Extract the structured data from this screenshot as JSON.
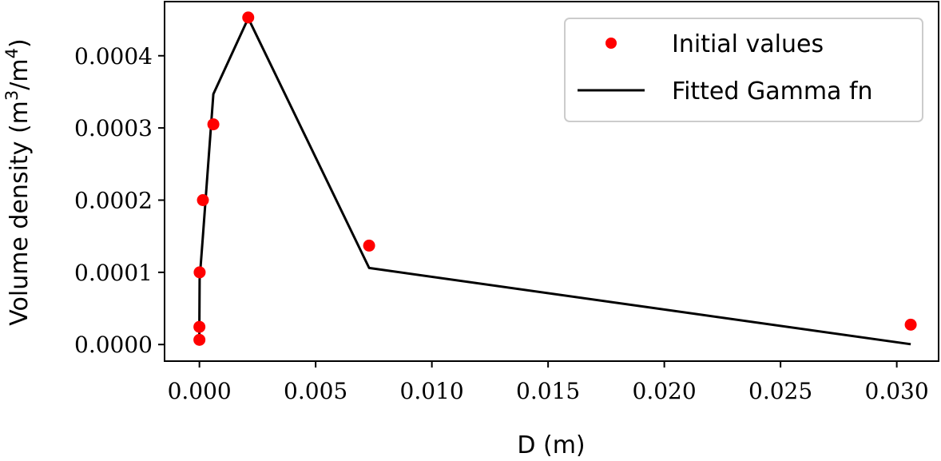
{
  "chart_data": {
    "type": "line",
    "xlabel": "D (m)",
    "ylabel": {
      "prefix": "Volume density (m",
      "sup1": "3",
      "mid": "/m",
      "sup2": "4",
      "suffix": ")"
    },
    "xlim": [
      -0.0015,
      0.0318
    ],
    "ylim": [
      -2.3e-05,
      0.000475
    ],
    "x_ticks": [
      0.0,
      0.005,
      0.01,
      0.015,
      0.02,
      0.025,
      0.03
    ],
    "x_tick_labels": [
      "0.000",
      "0.005",
      "0.010",
      "0.015",
      "0.020",
      "0.025",
      "0.030"
    ],
    "y_ticks": [
      0.0,
      0.0001,
      0.0002,
      0.0003,
      0.0004
    ],
    "y_tick_labels": [
      "0.0000",
      "0.0001",
      "0.0002",
      "0.0003",
      "0.0004"
    ],
    "legend_position": "top-right",
    "series": [
      {
        "name": "Initial values",
        "kind": "scatter",
        "color": "#ff0000",
        "x": [
          0.0,
          0.0,
          1e-05,
          0.00015,
          0.0006,
          0.0021,
          0.0073,
          0.0306
        ],
        "y": [
          6.5e-06,
          2.45e-05,
          0.0001,
          0.0002,
          0.000305,
          0.000453,
          0.000137,
          2.75e-05
        ]
      },
      {
        "name": "Fitted Gamma fn",
        "kind": "line",
        "color": "#000000",
        "x": [
          0.0,
          0.0,
          1e-05,
          0.00015,
          0.0006,
          0.0021,
          0.0073,
          0.0306
        ],
        "y": [
          8e-06,
          3e-05,
          9e-05,
          0.00015,
          0.000347,
          0.000452,
          0.000106,
          5e-07
        ]
      }
    ]
  }
}
